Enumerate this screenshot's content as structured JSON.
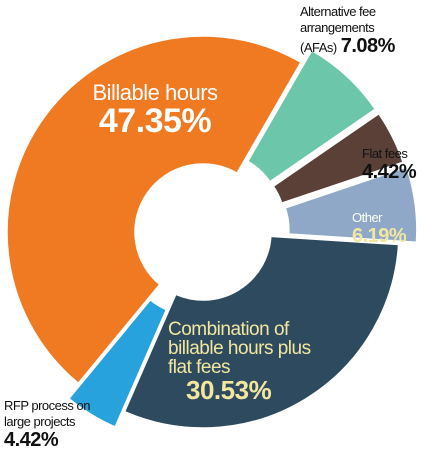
{
  "chart_data": {
    "type": "donut",
    "categories": [
      "Billable hours",
      "Alternative fee arrangements (AFAs)",
      "Flat fees",
      "Other",
      "Combination of billable hours plus flat fees",
      "RFP process on large projects"
    ],
    "values": [
      47.35,
      7.08,
      4.42,
      6.19,
      30.53,
      4.42
    ],
    "value_labels": [
      "47.35%",
      "7.08%",
      "4.42%",
      "6.19%",
      "30.53%",
      "4.42%"
    ],
    "colors": [
      "#f07a22",
      "#6cc6aa",
      "#5b4038",
      "#8fa8c8",
      "#2e4a5f",
      "#28a2dc"
    ]
  }
}
